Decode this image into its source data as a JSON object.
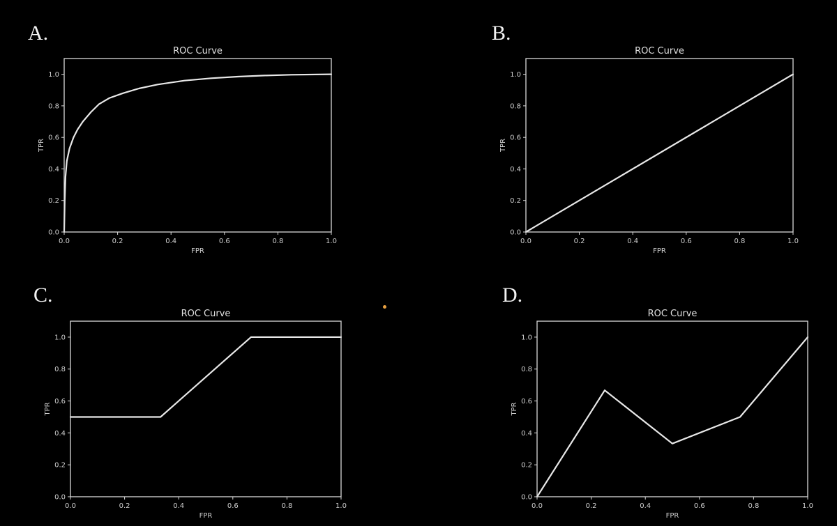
{
  "panel_labels": [
    "A.",
    "B.",
    "C.",
    "D."
  ],
  "colors": {
    "background": "#000000",
    "line": "#e8e8e8",
    "dot": "#e8a040"
  },
  "chart_data": [
    {
      "type": "line",
      "title": "ROC Curve",
      "xlabel": "FPR",
      "ylabel": "TPR",
      "xlim": [
        0,
        1
      ],
      "ylim": [
        0,
        1.1
      ],
      "xticks": [
        "0.0",
        "0.2",
        "0.4",
        "0.6",
        "0.8",
        "1.0"
      ],
      "yticks": [
        "0.0",
        "0.2",
        "0.4",
        "0.6",
        "0.8",
        "1.0"
      ],
      "grid": false,
      "series": [
        {
          "x": [
            0,
            0.002,
            0.005,
            0.01,
            0.02,
            0.035,
            0.05,
            0.07,
            0.1,
            0.13,
            0.17,
            0.22,
            0.28,
            0.35,
            0.45,
            0.55,
            0.65,
            0.75,
            0.85,
            1.0
          ],
          "y": [
            0,
            0.2,
            0.35,
            0.45,
            0.53,
            0.6,
            0.65,
            0.7,
            0.76,
            0.81,
            0.85,
            0.88,
            0.91,
            0.935,
            0.96,
            0.975,
            0.985,
            0.992,
            0.997,
            1.0
          ]
        }
      ]
    },
    {
      "type": "line",
      "title": "ROC Curve",
      "xlabel": "FPR",
      "ylabel": "TPR",
      "xlim": [
        0,
        1
      ],
      "ylim": [
        0,
        1.1
      ],
      "xticks": [
        "0.0",
        "0.2",
        "0.4",
        "0.6",
        "0.8",
        "1.0"
      ],
      "yticks": [
        "0.0",
        "0.2",
        "0.4",
        "0.6",
        "0.8",
        "1.0"
      ],
      "grid": false,
      "series": [
        {
          "x": [
            0,
            1
          ],
          "y": [
            0,
            1
          ]
        }
      ]
    },
    {
      "type": "line",
      "title": "ROC Curve",
      "xlabel": "FPR",
      "ylabel": "TPR",
      "xlim": [
        0,
        1
      ],
      "ylim": [
        0,
        1.1
      ],
      "xticks": [
        "0.0",
        "0.2",
        "0.4",
        "0.6",
        "0.8",
        "1.0"
      ],
      "yticks": [
        "0.0",
        "0.2",
        "0.4",
        "0.6",
        "0.8",
        "1.0"
      ],
      "grid": false,
      "series": [
        {
          "x": [
            0,
            0.333,
            0.667,
            1.0
          ],
          "y": [
            0.5,
            0.5,
            1.0,
            1.0
          ]
        }
      ]
    },
    {
      "type": "line",
      "title": "ROC Curve",
      "xlabel": "FPR",
      "ylabel": "TPR",
      "xlim": [
        0,
        1
      ],
      "ylim": [
        0,
        1.1
      ],
      "xticks": [
        "0.0",
        "0.2",
        "0.4",
        "0.6",
        "0.8",
        "1.0"
      ],
      "yticks": [
        "0.0",
        "0.2",
        "0.4",
        "0.6",
        "0.8",
        "1.0"
      ],
      "grid": false,
      "series": [
        {
          "x": [
            0,
            0.25,
            0.5,
            0.75,
            1.0
          ],
          "y": [
            0,
            0.667,
            0.333,
            0.5,
            1.0
          ]
        }
      ]
    }
  ]
}
